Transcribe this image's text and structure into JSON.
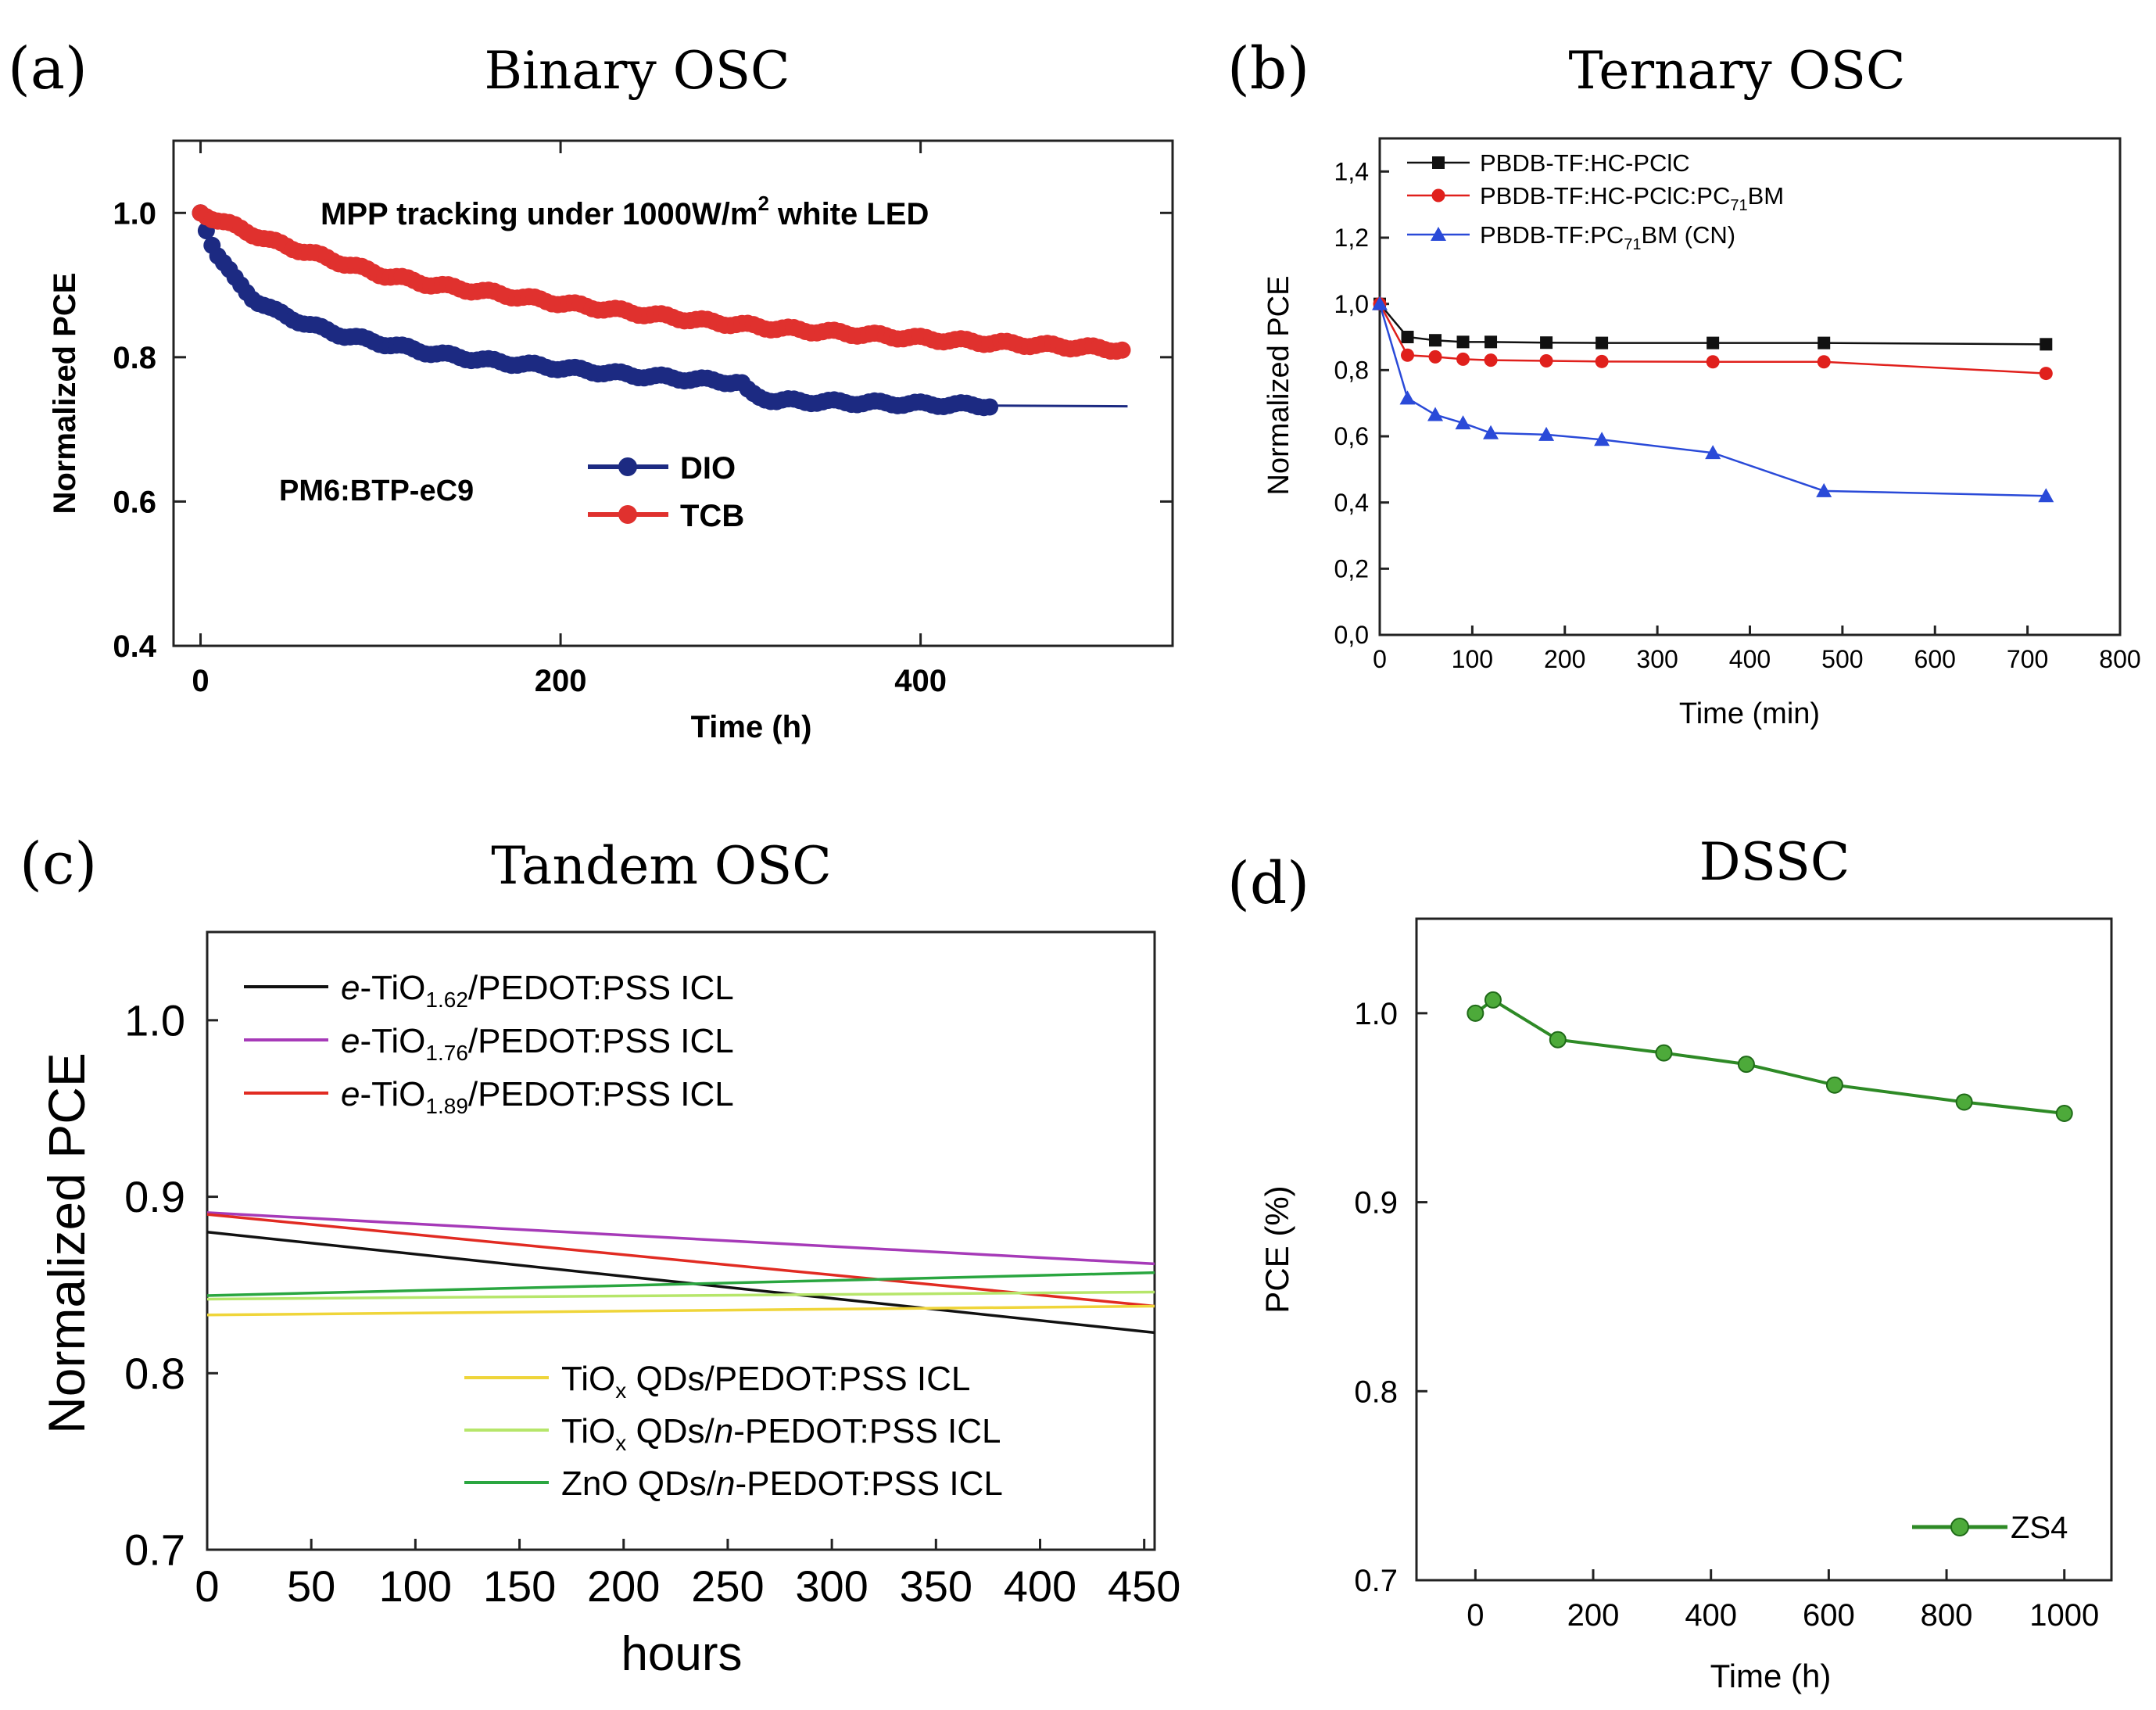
{
  "chart_data": [
    {
      "panel": "(a)",
      "type": "line",
      "title": "Binary OSC",
      "xlabel": "Time (h)",
      "ylabel": "Normalized PCE",
      "xlim": [
        -15,
        540
      ],
      "ylim": [
        0.4,
        1.1
      ],
      "xticks": [
        0,
        200,
        400
      ],
      "yticks": [
        0.4,
        0.6,
        0.8,
        1.0
      ],
      "xtick_labels": [
        "0",
        "200",
        "400"
      ],
      "ytick_labels": [
        "0.4",
        "0.6",
        "0.8",
        "1.0"
      ],
      "annotation": "MPP tracking under 1000W/m² white LED",
      "annotation2": "PM6:BTP-eC9",
      "legend": [
        "DIO",
        "TCB"
      ],
      "series": [
        {
          "name": "DIO",
          "color": "#1c2a82",
          "x": [
            0,
            5,
            10,
            20,
            30,
            40,
            60,
            80,
            100,
            130,
            160,
            200,
            240,
            270,
            300,
            305,
            310,
            320,
            350,
            400,
            440
          ],
          "y": [
            1.0,
            0.965,
            0.94,
            0.905,
            0.88,
            0.865,
            0.845,
            0.83,
            0.82,
            0.805,
            0.795,
            0.785,
            0.775,
            0.77,
            0.765,
            0.75,
            0.745,
            0.74,
            0.738,
            0.735,
            0.733
          ],
          "marker_until": 440,
          "tail_x": [
            440,
            515
          ],
          "tail_y": [
            0.733,
            0.732
          ]
        },
        {
          "name": "TCB",
          "color": "#e0312e",
          "x": [
            0,
            5,
            10,
            20,
            40,
            60,
            80,
            100,
            130,
            160,
            200,
            240,
            280,
            320,
            360,
            400,
            440,
            480,
            515
          ],
          "y": [
            1.0,
            0.995,
            0.99,
            0.98,
            0.96,
            0.945,
            0.93,
            0.915,
            0.9,
            0.89,
            0.875,
            0.862,
            0.85,
            0.84,
            0.833,
            0.826,
            0.82,
            0.815,
            0.81
          ]
        }
      ]
    },
    {
      "panel": "(b)",
      "type": "line",
      "title": "Ternary OSC",
      "xlabel": "Time (min)",
      "ylabel": "Normalized PCE",
      "xlim": [
        0,
        800
      ],
      "ylim": [
        0,
        1.5
      ],
      "xticks": [
        0,
        100,
        200,
        300,
        400,
        500,
        600,
        700,
        800
      ],
      "yticks": [
        0,
        0.2,
        0.4,
        0.6,
        0.8,
        1.0,
        1.2,
        1.4
      ],
      "xtick_labels": [
        "0",
        "100",
        "200",
        "300",
        "400",
        "500",
        "600",
        "700",
        "800"
      ],
      "ytick_labels": [
        "0,0",
        "0,2",
        "0,4",
        "0,6",
        "0,8",
        "1,0",
        "1,2",
        "1,4"
      ],
      "legend": [
        "PBDB-TF:HC-PClC",
        "PBDB-TF:HC-PClC:PC71BM",
        "PBDB-TF:PC71BM (CN)"
      ],
      "series": [
        {
          "name": "PBDB-TF:HC-PClC",
          "color": "#111111",
          "marker": "square",
          "x": [
            0,
            30,
            60,
            90,
            120,
            180,
            240,
            360,
            480,
            720
          ],
          "y": [
            1.0,
            0.9,
            0.89,
            0.885,
            0.885,
            0.883,
            0.882,
            0.882,
            0.882,
            0.878
          ]
        },
        {
          "name": "PBDB-TF:HC-PClC:PC71BM",
          "color": "#e0201c",
          "marker": "circle",
          "x": [
            0,
            30,
            60,
            90,
            120,
            180,
            240,
            360,
            480,
            720
          ],
          "y": [
            1.0,
            0.845,
            0.84,
            0.833,
            0.83,
            0.828,
            0.826,
            0.825,
            0.825,
            0.79
          ]
        },
        {
          "name": "PBDB-TF:PC71BM (CN)",
          "color": "#2a4ad8",
          "marker": "triangle",
          "x": [
            0,
            30,
            60,
            90,
            120,
            180,
            240,
            360,
            480,
            720
          ],
          "y": [
            1.0,
            0.715,
            0.665,
            0.64,
            0.61,
            0.605,
            0.59,
            0.55,
            0.435,
            0.42
          ]
        }
      ]
    },
    {
      "panel": "(c)",
      "type": "line",
      "title": "Tandem OSC",
      "xlabel": "hours",
      "ylabel": "Normalized PCE",
      "xlim": [
        0,
        455
      ],
      "ylim": [
        0.7,
        1.05
      ],
      "xticks": [
        0,
        50,
        100,
        150,
        200,
        250,
        300,
        350,
        400,
        450
      ],
      "yticks": [
        0.7,
        0.8,
        0.9,
        1.0
      ],
      "xtick_labels": [
        "0",
        "50",
        "100",
        "150",
        "200",
        "250",
        "300",
        "350",
        "400",
        "450"
      ],
      "ytick_labels": [
        "0.7",
        "0.8",
        "0.9",
        "1.0"
      ],
      "legend": [
        "e-TiO1.62/PEDOT:PSS ICL",
        "e-TiO1.76/PEDOT:PSS ICL",
        "e-TiO1.89/PEDOT:PSS ICL",
        "TiOx QDs/PEDOT:PSS ICL",
        "TiOx QDs/n-PEDOT:PSS ICL",
        "ZnO QDs/n-PEDOT:PSS ICL"
      ],
      "series": [
        {
          "name": "e-TiO1.62/PEDOT:PSS ICL",
          "color": "#111111",
          "x": [
            0,
            455
          ],
          "y": [
            0.88,
            0.823
          ]
        },
        {
          "name": "e-TiO1.76/PEDOT:PSS ICL",
          "color": "#a63ab8",
          "x": [
            0,
            455
          ],
          "y": [
            0.891,
            0.862
          ]
        },
        {
          "name": "e-TiO1.89/PEDOT:PSS ICL",
          "color": "#e12b22",
          "x": [
            0,
            455
          ],
          "y": [
            0.89,
            0.838
          ]
        },
        {
          "name": "TiOx QDs/PEDOT:PSS ICL",
          "color": "#efd53a",
          "x": [
            0,
            455
          ],
          "y": [
            0.833,
            0.838
          ]
        },
        {
          "name": "TiOx QDs/n-PEDOT:PSS ICL",
          "color": "#b6e66a",
          "x": [
            0,
            455
          ],
          "y": [
            0.842,
            0.846
          ]
        },
        {
          "name": "ZnO QDs/n-PEDOT:PSS ICL",
          "color": "#2aa640",
          "x": [
            0,
            455
          ],
          "y": [
            0.844,
            0.857
          ]
        }
      ]
    },
    {
      "panel": "(d)",
      "type": "line",
      "title": "DSSC",
      "xlabel": "Time (h)",
      "ylabel": "PCE (%)",
      "xlim": [
        -100,
        1080
      ],
      "ylim": [
        0.7,
        1.05
      ],
      "xticks": [
        0,
        200,
        400,
        600,
        800,
        1000
      ],
      "yticks": [
        0.7,
        0.8,
        0.9,
        1.0
      ],
      "xtick_labels": [
        "0",
        "200",
        "400",
        "600",
        "800",
        "1000"
      ],
      "ytick_labels": [
        "0.7",
        "0.8",
        "0.9",
        "1.0"
      ],
      "legend": [
        "ZS4"
      ],
      "series": [
        {
          "name": "ZS4",
          "color": "#2e8a26",
          "x": [
            0,
            30,
            140,
            320,
            460,
            610,
            830,
            1000
          ],
          "y": [
            1.0,
            1.007,
            0.986,
            0.979,
            0.973,
            0.962,
            0.953,
            0.947
          ]
        }
      ]
    }
  ],
  "text": {
    "panel_a_label": "(a)",
    "panel_a_title": "Binary OSC",
    "panel_a_annot": "MPP tracking under 1000W/m",
    "panel_a_annot_sup": "2",
    "panel_a_annot_tail": " white LED",
    "panel_a_material": "PM6:BTP-eC9",
    "panel_b_label": "(b)",
    "panel_b_title": "Ternary OSC",
    "panel_c_label": "(c)",
    "panel_c_title": "Tandem OSC",
    "panel_d_label": "(d)",
    "panel_d_title": "DSSC",
    "c_leg": [
      {
        "pre": "e",
        "mid": "-TiO",
        "sub": "1.62",
        "post": "/PEDOT:PSS ICL"
      },
      {
        "pre": "e",
        "mid": "-TiO",
        "sub": "1.76",
        "post": "/PEDOT:PSS ICL"
      },
      {
        "pre": "e",
        "mid": "-TiO",
        "sub": "1.89",
        "post": "/PEDOT:PSS ICL"
      }
    ],
    "c_leg2": [
      {
        "a": "TiO",
        "sub": "x",
        "b": " QDs/",
        "it": "",
        "c": "PEDOT:PSS ICL"
      },
      {
        "a": "TiO",
        "sub": "x",
        "b": " QDs/",
        "it": "n",
        "c": "-PEDOT:PSS ICL"
      },
      {
        "a": "ZnO",
        "sub": "",
        "b": " QDs/",
        "it": "n",
        "c": "-PEDOT:PSS ICL"
      }
    ],
    "b_leg": [
      {
        "a": "PBDB-TF:HC-PClC",
        "sub": "",
        "b": ""
      },
      {
        "a": "PBDB-TF:HC-PClC:PC",
        "sub": "71",
        "b": "BM"
      },
      {
        "a": "PBDB-TF:PC",
        "sub": "71",
        "b": "BM (CN)"
      }
    ]
  }
}
